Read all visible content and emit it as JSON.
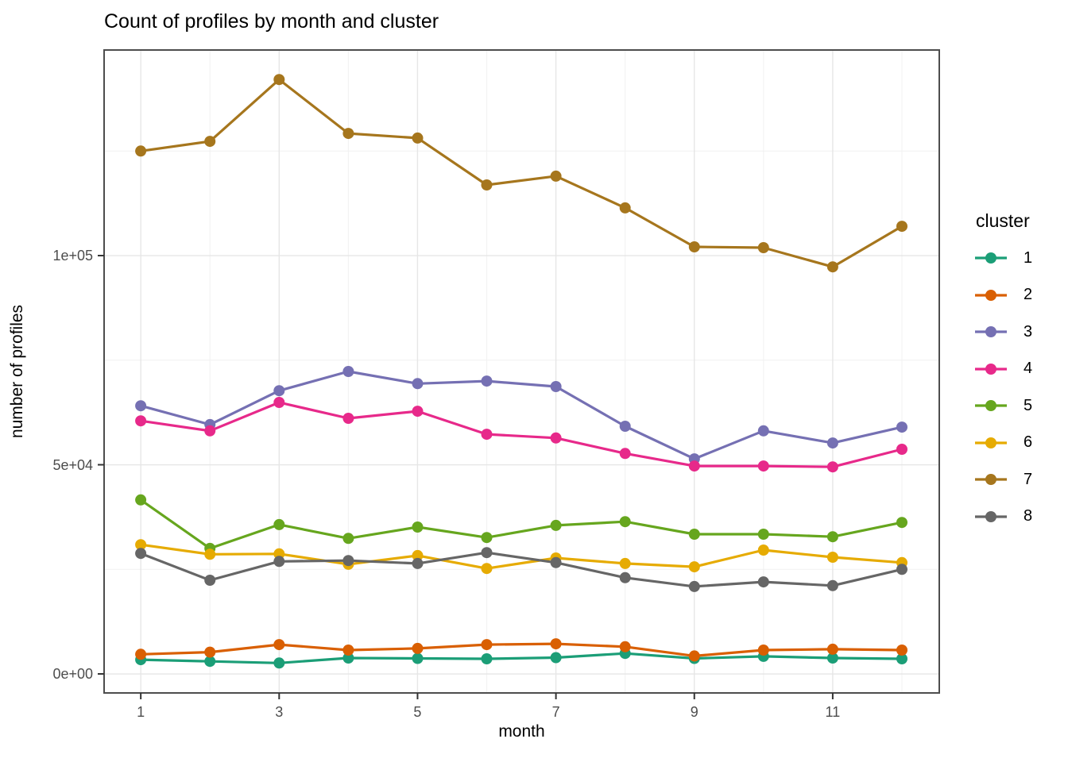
{
  "figure": {
    "title": "Count of profiles by month and cluster"
  },
  "legend": {
    "title": "cluster"
  },
  "chart_data": {
    "type": "line",
    "title": "Count of profiles by month and cluster",
    "xlabel": "month",
    "ylabel": "number of profiles",
    "x": [
      1,
      2,
      3,
      4,
      5,
      6,
      7,
      8,
      9,
      10,
      11,
      12
    ],
    "x_tick_values": [
      1,
      3,
      5,
      7,
      9,
      11
    ],
    "x_tick_labels": [
      "1",
      "3",
      "5",
      "7",
      "9",
      "11"
    ],
    "x_minor_values": [
      2,
      4,
      6,
      8,
      10,
      12
    ],
    "y_tick_values": [
      0,
      50000,
      100000
    ],
    "y_tick_labels": [
      "0e+00",
      "5e+04",
      "1e+05"
    ],
    "y_minor_values": [
      25000,
      75000,
      125000
    ],
    "xlim": [
      0.47,
      12.54
    ],
    "ylim": [
      -4550,
      149150
    ],
    "grid": true,
    "legend_title": "cluster",
    "legend_position": "right",
    "point_radius": 7,
    "line_width": 3.2,
    "series": [
      {
        "name": "1",
        "color": "#1B9E77",
        "values": [
          3400,
          3000,
          2600,
          3800,
          3700,
          3600,
          3900,
          4900,
          3700,
          4200,
          3800,
          3600
        ]
      },
      {
        "name": "2",
        "color": "#D95F02",
        "values": [
          4700,
          5200,
          7000,
          5700,
          6100,
          7000,
          7200,
          6500,
          4300,
          5700,
          5900,
          5700
        ]
      },
      {
        "name": "3",
        "color": "#7570B3",
        "values": [
          64100,
          59600,
          67700,
          72300,
          69400,
          70000,
          68700,
          59200,
          51400,
          58100,
          55200,
          59000
        ]
      },
      {
        "name": "4",
        "color": "#E7298A",
        "values": [
          60500,
          58100,
          64900,
          61100,
          62800,
          57300,
          56400,
          52700,
          49700,
          49700,
          49500,
          53700
        ]
      },
      {
        "name": "5",
        "color": "#66A61E",
        "values": [
          41600,
          30000,
          35700,
          32400,
          35100,
          32600,
          35500,
          36400,
          33400,
          33400,
          32800,
          36200
        ]
      },
      {
        "name": "6",
        "color": "#E6AB02",
        "values": [
          30900,
          28600,
          28700,
          26200,
          28300,
          25200,
          27700,
          26400,
          25600,
          29600,
          27900,
          26600
        ]
      },
      {
        "name": "7",
        "color": "#A6761D",
        "values": [
          125000,
          127300,
          142100,
          129200,
          128100,
          116900,
          119000,
          111400,
          102100,
          101900,
          97300,
          107000
        ]
      },
      {
        "name": "8",
        "color": "#666666",
        "values": [
          28800,
          22400,
          26900,
          27100,
          26400,
          29000,
          26600,
          23000,
          20900,
          22000,
          21100,
          25000
        ]
      }
    ]
  },
  "colors": {
    "background": "#FFFFFF",
    "panel_background": "#FFFFFF",
    "panel_border": "#4D4D4D",
    "grid_major": "#E6E6E6",
    "grid_minor": "#F2F2F2",
    "tick_mark": "#333333",
    "tick_label": "#4D4D4D",
    "text": "#000000"
  }
}
